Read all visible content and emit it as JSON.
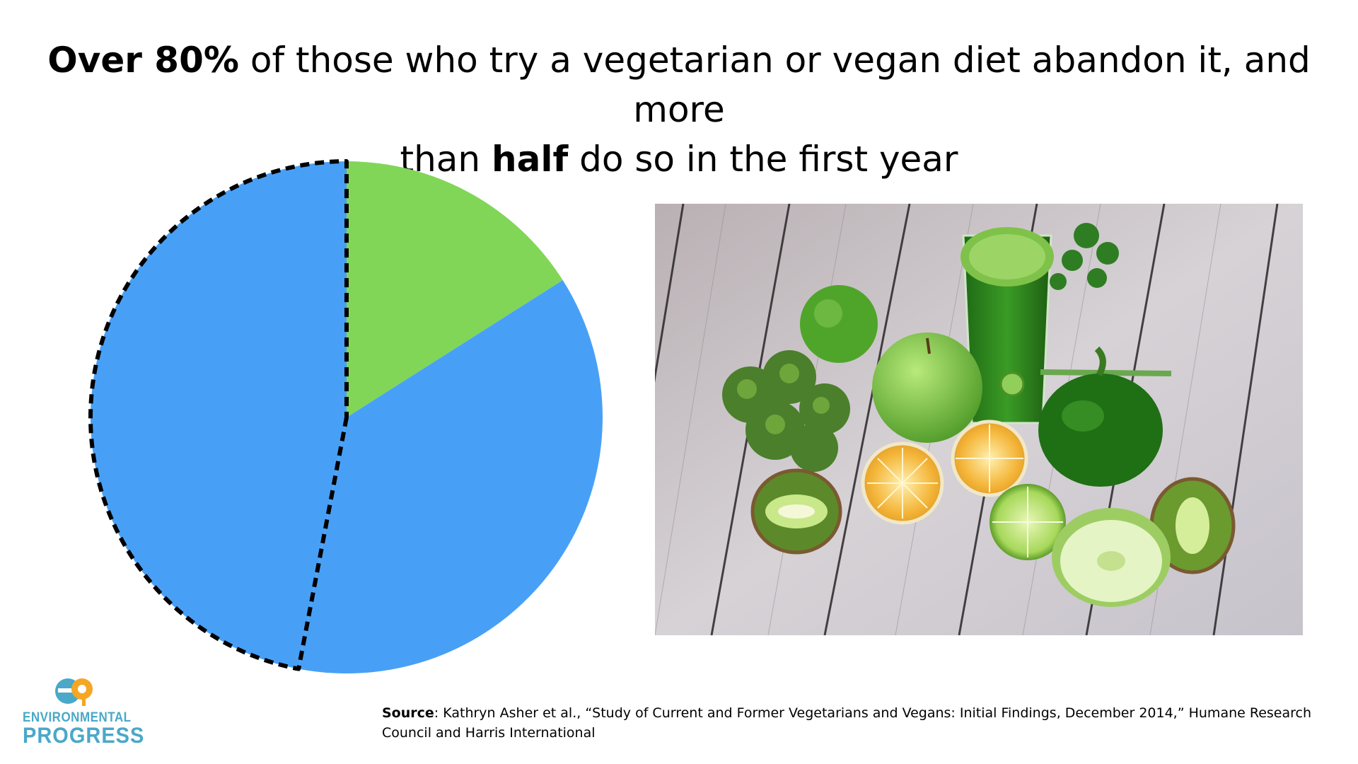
{
  "title": {
    "line1_bold": "Over 80%",
    "line1_rest": " of those who try a vegetarian or vegan diet abandon it, and more",
    "line2_start": "than ",
    "line2_bold": "half",
    "line2_end": " do so in the first year"
  },
  "chart_data": {
    "type": "pie",
    "title": "",
    "slices": [
      {
        "value": 16,
        "color": "#82d657",
        "outline": "none"
      },
      {
        "value": 37,
        "color": "#48a0f6",
        "outline": "none"
      },
      {
        "value": 47,
        "color": "#48a0f6",
        "outline": "dashed"
      }
    ],
    "start_angle_deg": 0,
    "direction": "clockwise",
    "legend": "none",
    "data_labels": "none"
  },
  "photo": {
    "icon": "vegetables-and-green-smoothie-photo"
  },
  "logo": {
    "line1": "ENVIRONMENTAL",
    "line2": "PROGRESS",
    "color": "#4aa8c8",
    "accent": "#f5a623"
  },
  "source": {
    "label": "Source",
    "text": ": Kathryn Asher et al., “Study of Current and Former Vegetarians and Vegans: Initial Findings, December 2014,” Humane Research Council and Harris International"
  }
}
